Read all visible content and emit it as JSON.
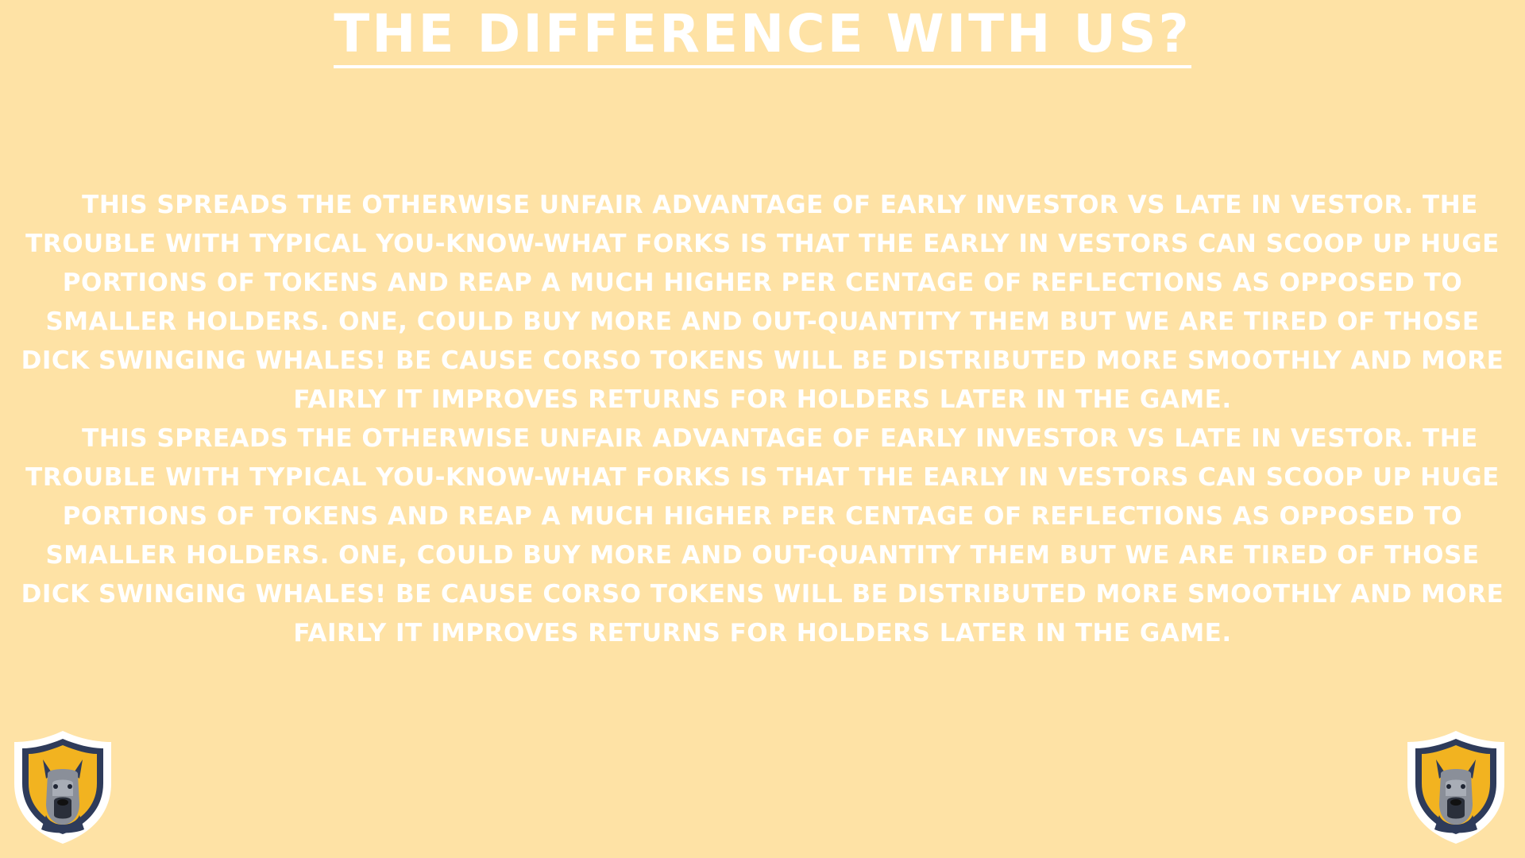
{
  "title": "The Difference With Us?",
  "paragraphs": [
    "This spreads the otherwise unfair advantage of early investor vs late in vestor. The trouble with typical you-know-what forks is that the early in vestors can scoop up huge portions of tokens and reap a much higher per centage of reflections as opposed to smaller holders. One, could buy more and out-quantity them but we are tired of those dick swinging whales! Be cause Corso tokens will be distributed more smoothly and more fairly it improves returns for holders later in the game.",
    "This spreads the otherwise unfair advantage of early investor vs late in vestor. The trouble with typical you-know-what forks is that the early in vestors can scoop up huge portions of tokens and reap a much higher per centage of reflections as opposed to smaller holders. One, could buy more and out-quantity them but we are tired of those dick swinging whales! Be cause Corso tokens will be distributed more smoothly and more fairly it improves returns for holders later in the game."
  ],
  "logos": {
    "left": "dog-shield-logo",
    "right": "dog-shield-logo"
  },
  "colors": {
    "background": "#FEE2A5",
    "text": "#FFFFFF",
    "shield_border": "#FFFFFF",
    "shield_outline": "#2E3B5A",
    "shield_fill": "#F2B320",
    "dog_fur": "#8A8F99"
  }
}
